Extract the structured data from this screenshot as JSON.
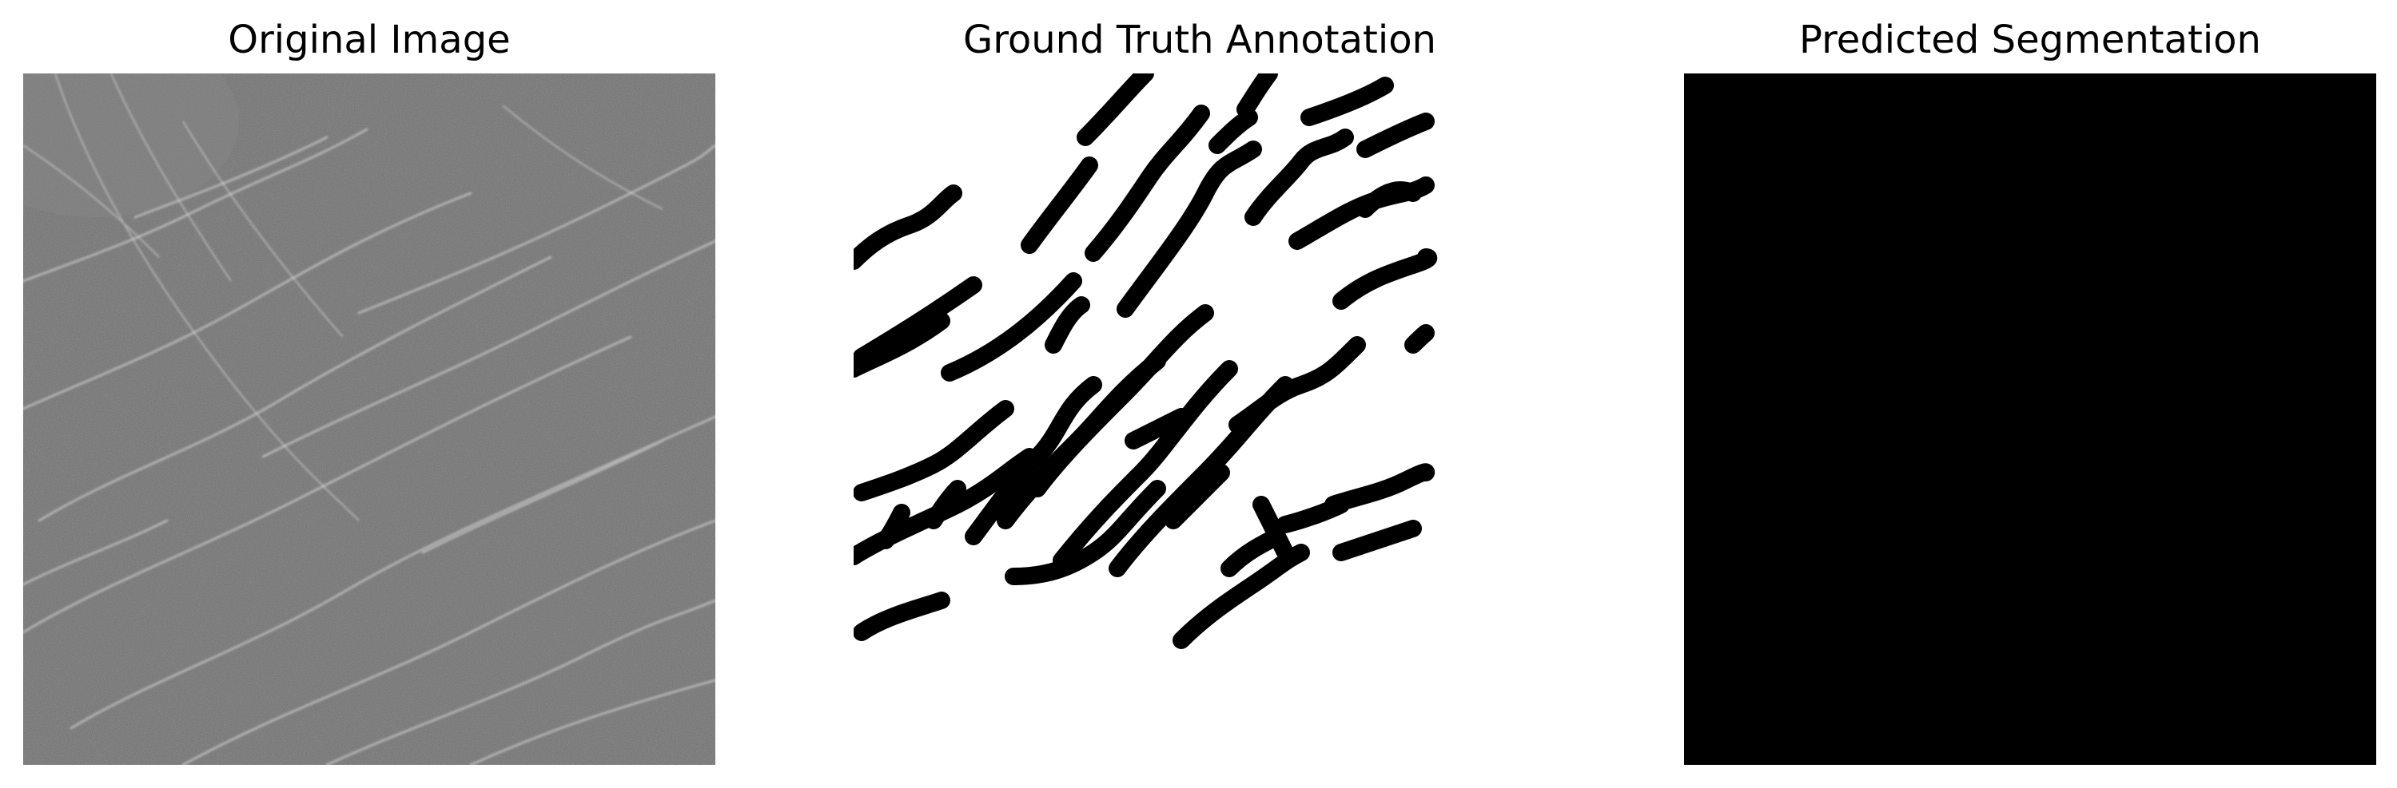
{
  "panels": [
    {
      "title": "Original Image",
      "content": "grayscale texture with bright curvilinear features"
    },
    {
      "title": "Ground Truth Annotation",
      "content": "binary mask: black curvilinear strokes on white"
    },
    {
      "title": "Predicted Segmentation",
      "content": "all-black mask"
    }
  ],
  "colors": {
    "background": "#ffffff",
    "text": "#000000",
    "mask_foreground": "#000000",
    "mask_background": "#ffffff"
  }
}
